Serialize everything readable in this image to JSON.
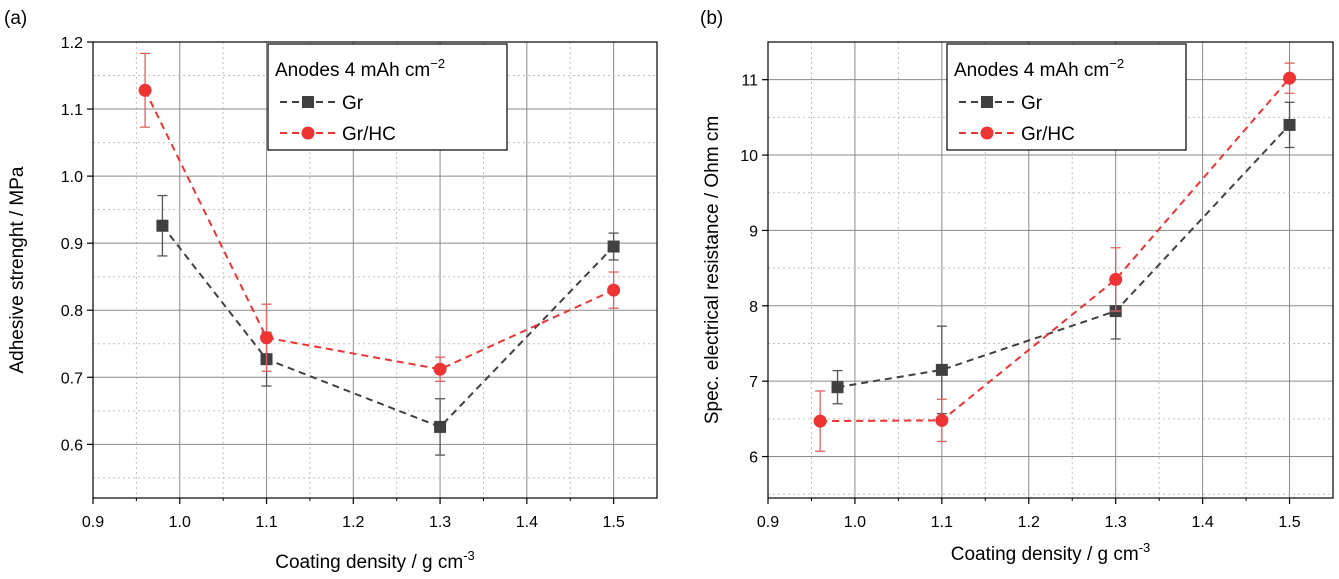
{
  "chart_data": [
    {
      "panel_label": "(a)",
      "type": "scatter",
      "ylabel": "Adhesive strenght / MPa",
      "xlabel_main": "Coating density / g cm",
      "xlabel_sup": "-3",
      "xlim": [
        0.9,
        1.55
      ],
      "ylim": [
        0.52,
        1.2
      ],
      "xticks": [
        "0.9",
        "1.0",
        "1.1",
        "1.2",
        "1.3",
        "1.4",
        "1.5"
      ],
      "xtick_values": [
        0.9,
        1.0,
        1.1,
        1.2,
        1.3,
        1.4,
        1.5
      ],
      "yticks": [
        "0.6",
        "0.7",
        "0.8",
        "0.9",
        "1.0",
        "1.1",
        "1.2"
      ],
      "ytick_values": [
        0.6,
        0.7,
        0.8,
        0.9,
        1.0,
        1.1,
        1.2
      ],
      "grid": true,
      "legend_title_main": "Anodes 4 mAh cm",
      "legend_title_sup": "−2",
      "legend_position": "top-right",
      "series": [
        {
          "name": "Gr",
          "color": "#404040",
          "marker": "square",
          "x": [
            0.98,
            1.1,
            1.3,
            1.5
          ],
          "y": [
            0.926,
            0.727,
            0.626,
            0.895
          ],
          "err": [
            0.045,
            0.04,
            0.042,
            0.02
          ]
        },
        {
          "name": "Gr/HC",
          "color": "#ee3333",
          "marker": "circle",
          "x": [
            0.96,
            1.1,
            1.3,
            1.5
          ],
          "y": [
            1.128,
            0.759,
            0.712,
            0.83
          ],
          "err": [
            0.055,
            0.05,
            0.018,
            0.027
          ]
        }
      ]
    },
    {
      "panel_label": "(b)",
      "type": "scatter",
      "ylabel": "Spec. electrical resistance / Ohm cm",
      "xlabel_main": "Coating density / g cm",
      "xlabel_sup": "-3",
      "xlim": [
        0.9,
        1.55
      ],
      "ylim": [
        5.45,
        11.5
      ],
      "xticks": [
        "0.9",
        "1.0",
        "1.1",
        "1.2",
        "1.3",
        "1.4",
        "1.5"
      ],
      "xtick_values": [
        0.9,
        1.0,
        1.1,
        1.2,
        1.3,
        1.4,
        1.5
      ],
      "yticks": [
        "6",
        "7",
        "8",
        "9",
        "10",
        "11"
      ],
      "ytick_values": [
        6,
        7,
        8,
        9,
        10,
        11
      ],
      "grid": true,
      "legend_title_main": "Anodes 4 mAh cm",
      "legend_title_sup": "−2",
      "legend_position": "top-right",
      "series": [
        {
          "name": "Gr",
          "color": "#404040",
          "marker": "square",
          "x": [
            0.98,
            1.1,
            1.3,
            1.5
          ],
          "y": [
            6.92,
            7.15,
            7.93,
            10.4
          ],
          "err": [
            0.22,
            0.58,
            0.37,
            0.3
          ]
        },
        {
          "name": "Gr/HC",
          "color": "#ee3333",
          "marker": "circle",
          "x": [
            0.96,
            1.1,
            1.3,
            1.5
          ],
          "y": [
            6.47,
            6.48,
            8.35,
            11.02
          ],
          "err": [
            0.4,
            0.28,
            0.42,
            0.2
          ]
        }
      ]
    }
  ]
}
